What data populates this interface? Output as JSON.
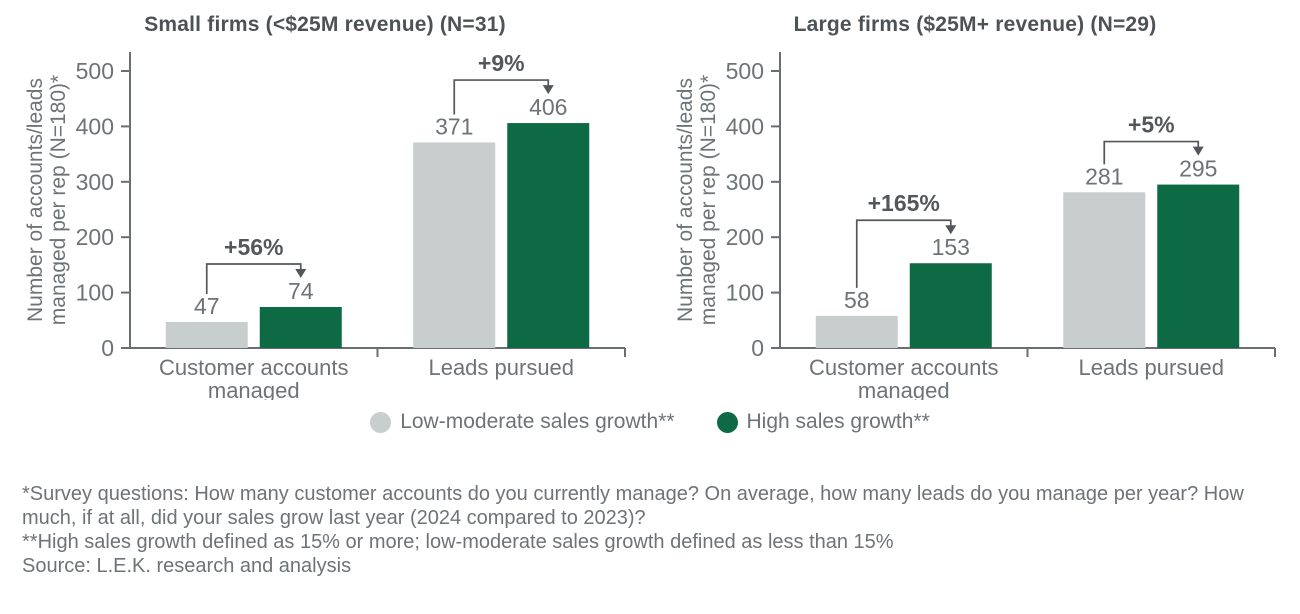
{
  "style": {
    "background": "#ffffff",
    "bar_gray": "#c7cecd",
    "bar_green": "#0d6a45",
    "text_color": "#6e7377",
    "title_color": "#4d5256",
    "annotation_color": "#53575b",
    "axis_color": "#696e71"
  },
  "chart_data": [
    {
      "type": "bar",
      "title": "Small firms (<$25M revenue) (N=31)",
      "categories": [
        "Customer accounts managed",
        "Leads pursued"
      ],
      "category_lines": [
        [
          "Customer accounts",
          "managed"
        ],
        [
          "Leads pursued"
        ]
      ],
      "series": [
        {
          "name": "Low-moderate sales growth**",
          "values": [
            47,
            371
          ],
          "color": "#c7cecd"
        },
        {
          "name": "High sales growth**",
          "values": [
            74,
            406
          ],
          "color": "#0d6a45"
        }
      ],
      "annotations": [
        "+56%",
        "+9%"
      ],
      "xlabel": "",
      "ylabel": "Number of accounts/leads managed per rep (N=180)*",
      "ylabel_lines": [
        "Number of accounts/leads",
        "managed per rep (N=180)*"
      ],
      "ylim": [
        0,
        500
      ],
      "yticks": [
        0,
        100,
        200,
        300,
        400,
        500
      ],
      "grid": false,
      "legend_position": "bottom"
    },
    {
      "type": "bar",
      "title": "Large firms ($25M+ revenue) (N=29)",
      "categories": [
        "Customer accounts managed",
        "Leads pursued"
      ],
      "category_lines": [
        [
          "Customer accounts",
          "managed"
        ],
        [
          "Leads pursued"
        ]
      ],
      "series": [
        {
          "name": "Low-moderate sales growth**",
          "values": [
            58,
            281
          ],
          "color": "#c7cecd"
        },
        {
          "name": "High sales growth**",
          "values": [
            153,
            295
          ],
          "color": "#0d6a45"
        }
      ],
      "annotations": [
        "+165%",
        "+5%"
      ],
      "xlabel": "",
      "ylabel": "Number of accounts/leads managed per rep (N=180)*",
      "ylabel_lines": [
        "Number of accounts/leads",
        "managed per rep (N=180)*"
      ],
      "ylim": [
        0,
        500
      ],
      "yticks": [
        0,
        100,
        200,
        300,
        400,
        500
      ],
      "grid": false,
      "legend_position": "bottom"
    }
  ],
  "legend": {
    "items": [
      {
        "label": "Low-moderate sales growth**",
        "color": "#c7cecd"
      },
      {
        "label": "High sales growth**",
        "color": "#0d6a45"
      }
    ]
  },
  "footnotes": [
    "*Survey questions: How many customer accounts do you currently manage? On average, how many leads do you manage per year? How much, if at all, did your sales grow last year (2024 compared to 2023)?",
    "**High sales growth defined as 15% or more; low-moderate sales growth defined as less than 15%",
    "Source: L.E.K. research and analysis"
  ]
}
